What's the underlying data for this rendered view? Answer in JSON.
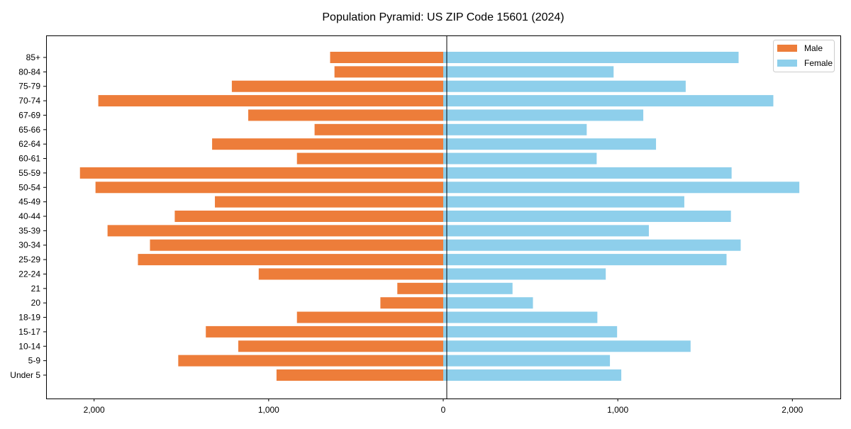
{
  "chart_data": {
    "type": "bar",
    "orientation": "horizontal",
    "title": "Population Pyramid: US ZIP Code 15601 (2024)",
    "xlabel": "",
    "ylabel": "",
    "categories": [
      "85+",
      "80-84",
      "75-79",
      "70-74",
      "67-69",
      "65-66",
      "62-64",
      "60-61",
      "55-59",
      "50-54",
      "45-49",
      "40-44",
      "35-39",
      "30-34",
      "25-29",
      "22-24",
      "21",
      "20",
      "18-19",
      "15-17",
      "10-14",
      "5-9",
      "Under 5"
    ],
    "series": [
      {
        "name": "Male",
        "color": "#ED7D3A",
        "direction": "left",
        "values": [
          648,
          623,
          1211,
          1976,
          1117,
          737,
          1324,
          838,
          2081,
          1992,
          1308,
          1538,
          1923,
          1680,
          1749,
          1057,
          263,
          360,
          838,
          1360,
          1174,
          1518,
          955
        ]
      },
      {
        "name": "Female",
        "color": "#8ECFEB",
        "direction": "right",
        "values": [
          1692,
          976,
          1389,
          1891,
          1146,
          822,
          1219,
          879,
          1652,
          2040,
          1381,
          1648,
          1178,
          1704,
          1623,
          931,
          397,
          514,
          883,
          996,
          1417,
          955,
          1020
        ]
      }
    ],
    "xlim": [
      -2275,
      2275
    ],
    "xticks": [
      -2000,
      -1000,
      0,
      1000,
      2000
    ],
    "xtick_labels": [
      "2,000",
      "1,000",
      "0",
      "1,000",
      "2,000"
    ],
    "grid": false,
    "legend_position": "top-right"
  }
}
